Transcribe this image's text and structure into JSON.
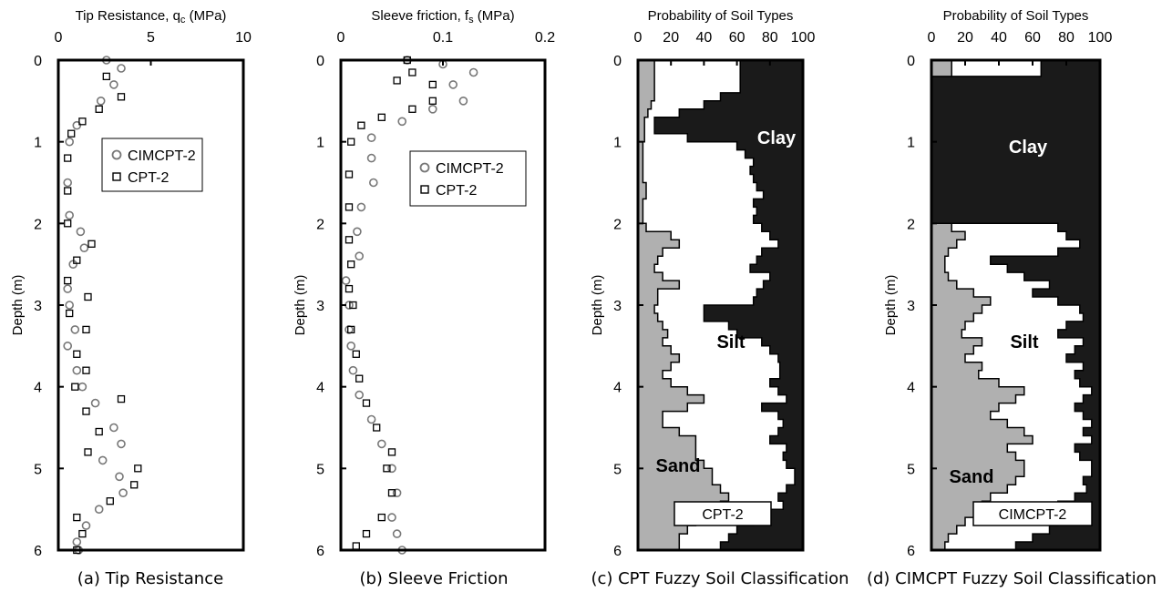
{
  "chart_data": [
    {
      "type": "scatter",
      "caption": "(a) Tip Resistance",
      "title": "Tip Resistance, qc (MPa)",
      "title_main": "Tip Resistance, q",
      "title_sub": "c",
      "title_unit": " (MPa)",
      "ylabel": "Depth (m)",
      "xlim": [
        0,
        10
      ],
      "ylim": [
        0,
        6
      ],
      "x_ticks": [
        "0",
        "5",
        "10"
      ],
      "y_ticks": [
        "0",
        "1",
        "2",
        "3",
        "4",
        "5",
        "6"
      ],
      "legend": {
        "placement": "upper-middle",
        "entries": [
          "CIMCPT-2",
          "CPT-2"
        ]
      },
      "series": [
        {
          "name": "CIMCPT-2",
          "marker": "circle",
          "color": "#777777",
          "points": [
            [
              2.6,
              0.0
            ],
            [
              3.4,
              0.1
            ],
            [
              3.0,
              0.3
            ],
            [
              2.3,
              0.5
            ],
            [
              1.0,
              0.8
            ],
            [
              0.6,
              1.0
            ],
            [
              0.5,
              1.5
            ],
            [
              0.6,
              1.9
            ],
            [
              1.2,
              2.1
            ],
            [
              1.4,
              2.3
            ],
            [
              0.8,
              2.5
            ],
            [
              0.5,
              2.8
            ],
            [
              0.6,
              3.0
            ],
            [
              0.9,
              3.3
            ],
            [
              0.5,
              3.5
            ],
            [
              1.0,
              3.8
            ],
            [
              1.3,
              4.0
            ],
            [
              2.0,
              4.2
            ],
            [
              3.0,
              4.5
            ],
            [
              3.4,
              4.7
            ],
            [
              2.4,
              4.9
            ],
            [
              3.3,
              5.1
            ],
            [
              3.5,
              5.3
            ],
            [
              2.2,
              5.5
            ],
            [
              1.5,
              5.7
            ],
            [
              1.0,
              5.9
            ],
            [
              1.1,
              6.0
            ]
          ]
        },
        {
          "name": "CPT-2",
          "marker": "square",
          "color": "#000000",
          "points": [
            [
              2.6,
              0.2
            ],
            [
              3.4,
              0.45
            ],
            [
              2.2,
              0.6
            ],
            [
              1.3,
              0.75
            ],
            [
              0.7,
              0.9
            ],
            [
              0.5,
              1.2
            ],
            [
              0.5,
              1.6
            ],
            [
              0.5,
              2.0
            ],
            [
              1.8,
              2.25
            ],
            [
              1.0,
              2.45
            ],
            [
              0.5,
              2.7
            ],
            [
              1.6,
              2.9
            ],
            [
              0.6,
              3.1
            ],
            [
              1.5,
              3.3
            ],
            [
              1.0,
              3.6
            ],
            [
              1.5,
              3.8
            ],
            [
              0.9,
              4.0
            ],
            [
              3.4,
              4.15
            ],
            [
              1.5,
              4.3
            ],
            [
              2.2,
              4.55
            ],
            [
              1.6,
              4.8
            ],
            [
              4.3,
              5.0
            ],
            [
              4.1,
              5.2
            ],
            [
              2.8,
              5.4
            ],
            [
              1.0,
              5.6
            ],
            [
              1.3,
              5.8
            ],
            [
              1.0,
              6.0
            ]
          ]
        }
      ]
    },
    {
      "type": "scatter",
      "caption": "(b) Sleeve Friction",
      "title": "Sleeve friction, fs (MPa)",
      "title_main": "Sleeve friction, f",
      "title_sub": "s",
      "title_unit": " (MPa)",
      "ylabel": "Depth (m)",
      "xlim": [
        0,
        0.2
      ],
      "ylim": [
        0,
        6
      ],
      "x_ticks": [
        "0",
        "0.1",
        "0.2"
      ],
      "y_ticks": [
        "0",
        "1",
        "2",
        "3",
        "4",
        "5",
        "6"
      ],
      "legend": {
        "placement": "upper-middle",
        "entries": [
          "CIMCPT-2",
          "CPT-2"
        ]
      },
      "series": [
        {
          "name": "CIMCPT-2",
          "marker": "circle",
          "color": "#777777",
          "points": [
            [
              0.065,
              0.0
            ],
            [
              0.1,
              0.05
            ],
            [
              0.13,
              0.15
            ],
            [
              0.11,
              0.3
            ],
            [
              0.12,
              0.5
            ],
            [
              0.09,
              0.6
            ],
            [
              0.06,
              0.75
            ],
            [
              0.03,
              0.95
            ],
            [
              0.03,
              1.2
            ],
            [
              0.032,
              1.5
            ],
            [
              0.02,
              1.8
            ],
            [
              0.016,
              2.1
            ],
            [
              0.018,
              2.4
            ],
            [
              0.005,
              2.7
            ],
            [
              0.008,
              3.0
            ],
            [
              0.008,
              3.3
            ],
            [
              0.01,
              3.5
            ],
            [
              0.012,
              3.8
            ],
            [
              0.018,
              4.1
            ],
            [
              0.03,
              4.4
            ],
            [
              0.04,
              4.7
            ],
            [
              0.05,
              5.0
            ],
            [
              0.055,
              5.3
            ],
            [
              0.05,
              5.6
            ],
            [
              0.055,
              5.8
            ],
            [
              0.06,
              6.0
            ]
          ]
        },
        {
          "name": "CPT-2",
          "marker": "square",
          "color": "#000000",
          "points": [
            [
              0.065,
              0.0
            ],
            [
              0.07,
              0.15
            ],
            [
              0.055,
              0.25
            ],
            [
              0.09,
              0.3
            ],
            [
              0.09,
              0.5
            ],
            [
              0.07,
              0.6
            ],
            [
              0.04,
              0.7
            ],
            [
              0.02,
              0.8
            ],
            [
              0.01,
              1.0
            ],
            [
              0.008,
              1.4
            ],
            [
              0.008,
              1.8
            ],
            [
              0.008,
              2.2
            ],
            [
              0.01,
              2.5
            ],
            [
              0.008,
              2.8
            ],
            [
              0.012,
              3.0
            ],
            [
              0.01,
              3.3
            ],
            [
              0.015,
              3.6
            ],
            [
              0.018,
              3.9
            ],
            [
              0.025,
              4.2
            ],
            [
              0.035,
              4.5
            ],
            [
              0.05,
              4.8
            ],
            [
              0.045,
              5.0
            ],
            [
              0.05,
              5.3
            ],
            [
              0.04,
              5.6
            ],
            [
              0.025,
              5.8
            ],
            [
              0.015,
              5.95
            ]
          ]
        }
      ]
    },
    {
      "type": "area",
      "caption": "(c) CPT Fuzzy Soil Classification",
      "title": "Probability of Soil Types",
      "ylabel": "Depth (m)",
      "xlim": [
        0,
        100
      ],
      "ylim": [
        0,
        6
      ],
      "x_ticks": [
        "0",
        "20",
        "40",
        "60",
        "80",
        "100"
      ],
      "y_ticks": [
        "0",
        "1",
        "2",
        "3",
        "4",
        "5",
        "6"
      ],
      "zones": {
        "top": "Clay",
        "middle": "Silt",
        "bottom": "Sand"
      },
      "box_label": "CPT-2",
      "colors": {
        "sand": "#b0b0b0",
        "silt": "#ffffff",
        "clay": "#1a1a1a"
      },
      "depth": [
        0.0,
        0.1,
        0.2,
        0.3,
        0.4,
        0.5,
        0.6,
        0.7,
        0.8,
        0.9,
        1.0,
        1.1,
        1.2,
        1.3,
        1.4,
        1.5,
        1.6,
        1.7,
        1.8,
        1.9,
        2.0,
        2.1,
        2.2,
        2.3,
        2.4,
        2.5,
        2.6,
        2.7,
        2.8,
        2.9,
        3.0,
        3.1,
        3.2,
        3.3,
        3.4,
        3.5,
        3.6,
        3.7,
        3.8,
        3.9,
        4.0,
        4.1,
        4.2,
        4.3,
        4.4,
        4.5,
        4.6,
        4.7,
        4.8,
        4.9,
        5.0,
        5.1,
        5.2,
        5.3,
        5.4,
        5.5,
        5.6,
        5.7,
        5.8,
        5.9
      ],
      "sand": [
        10,
        10,
        10,
        10,
        10,
        8,
        6,
        4,
        4,
        4,
        3,
        3,
        3,
        3,
        3,
        5,
        5,
        3,
        3,
        3,
        5,
        20,
        25,
        15,
        12,
        10,
        15,
        25,
        12,
        12,
        10,
        12,
        15,
        18,
        15,
        20,
        25,
        20,
        15,
        20,
        30,
        40,
        30,
        15,
        15,
        25,
        35,
        35,
        35,
        40,
        45,
        45,
        50,
        55,
        50,
        40,
        35,
        30,
        25,
        25
      ],
      "sand_plus_silt": [
        62,
        62,
        62,
        62,
        50,
        40,
        25,
        10,
        10,
        30,
        60,
        65,
        70,
        68,
        70,
        72,
        76,
        70,
        72,
        70,
        75,
        80,
        85,
        75,
        72,
        68,
        80,
        76,
        72,
        70,
        40,
        40,
        55,
        60,
        75,
        80,
        85,
        86,
        86,
        80,
        85,
        90,
        75,
        85,
        88,
        85,
        80,
        90,
        88,
        90,
        95,
        95,
        90,
        85,
        88,
        80,
        70,
        60,
        55,
        50
      ]
    },
    {
      "type": "area",
      "caption": "(d) CIMCPT Fuzzy Soil Classification",
      "title": "Probability of Soil Types",
      "ylabel": "Depth (m)",
      "xlim": [
        0,
        100
      ],
      "ylim": [
        0,
        6
      ],
      "x_ticks": [
        "0",
        "20",
        "40",
        "60",
        "80",
        "100"
      ],
      "y_ticks": [
        "0",
        "1",
        "2",
        "3",
        "4",
        "5",
        "6"
      ],
      "zones": {
        "top": "Clay",
        "middle": "Silt",
        "bottom": "Sand"
      },
      "box_label": "CIMCPT-2",
      "colors": {
        "sand": "#b0b0b0",
        "silt": "#ffffff",
        "clay": "#1a1a1a"
      },
      "depth": [
        0.0,
        0.1,
        0.2,
        0.3,
        0.4,
        0.5,
        0.6,
        0.7,
        0.8,
        0.9,
        1.0,
        1.1,
        1.2,
        1.3,
        1.4,
        1.5,
        1.6,
        1.7,
        1.8,
        1.9,
        2.0,
        2.1,
        2.2,
        2.3,
        2.4,
        2.5,
        2.6,
        2.7,
        2.8,
        2.9,
        3.0,
        3.1,
        3.2,
        3.3,
        3.4,
        3.5,
        3.6,
        3.7,
        3.8,
        3.9,
        4.0,
        4.1,
        4.2,
        4.3,
        4.4,
        4.5,
        4.6,
        4.7,
        4.8,
        4.9,
        5.0,
        5.1,
        5.2,
        5.3,
        5.4,
        5.5,
        5.6,
        5.7,
        5.8,
        5.9
      ],
      "sand": [
        12,
        12,
        0,
        0,
        0,
        0,
        0,
        0,
        0,
        0,
        0,
        0,
        0,
        0,
        0,
        0,
        0,
        0,
        0,
        0,
        12,
        20,
        15,
        10,
        8,
        8,
        10,
        15,
        25,
        35,
        30,
        25,
        20,
        18,
        30,
        25,
        20,
        30,
        28,
        40,
        55,
        50,
        40,
        35,
        45,
        55,
        60,
        45,
        50,
        55,
        55,
        50,
        45,
        35,
        30,
        25,
        20,
        15,
        10,
        8
      ],
      "sand_plus_silt": [
        65,
        65,
        0,
        0,
        0,
        0,
        0,
        0,
        0,
        0,
        0,
        0,
        0,
        0,
        0,
        0,
        0,
        0,
        0,
        0,
        75,
        80,
        88,
        75,
        35,
        45,
        55,
        70,
        60,
        75,
        88,
        90,
        80,
        75,
        90,
        85,
        80,
        90,
        85,
        88,
        95,
        90,
        85,
        90,
        95,
        90,
        95,
        85,
        88,
        95,
        95,
        90,
        92,
        85,
        75,
        70,
        75,
        70,
        60,
        50
      ]
    }
  ]
}
